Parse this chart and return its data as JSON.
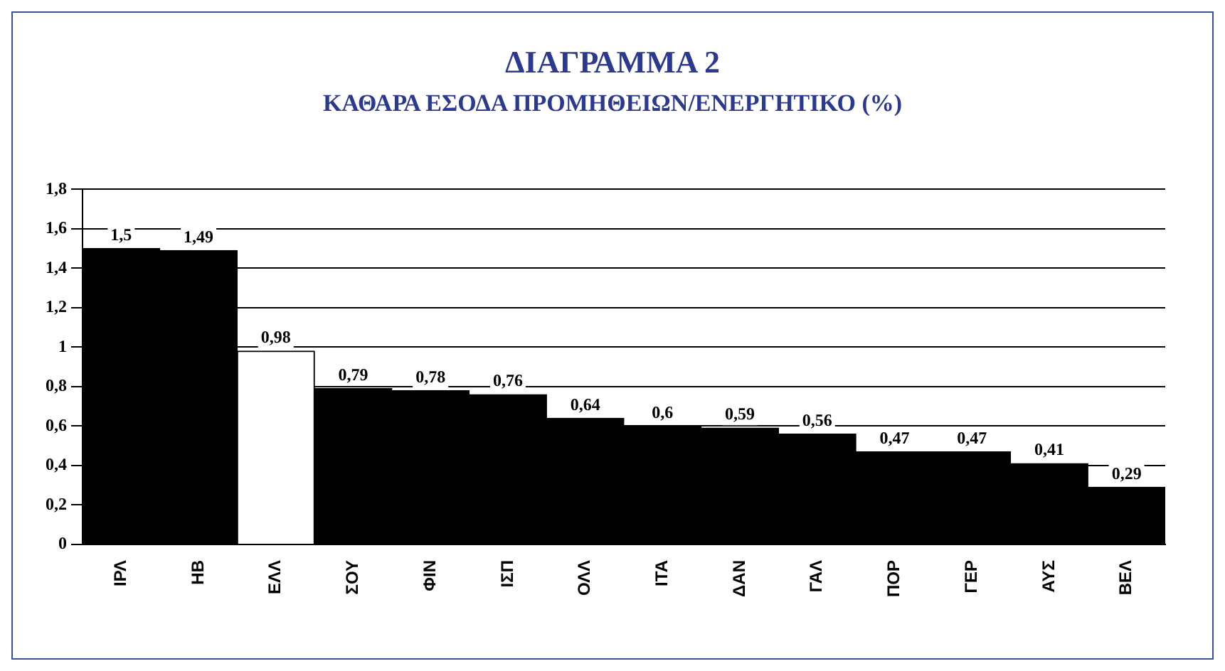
{
  "chart_data": {
    "type": "bar",
    "title": "ΔΙΑΓΡΑΜΜΑ 2",
    "subtitle": "ΚΑΘΑΡΑ ΕΣΟΔΑ ΠΡΟΜΗΘΕΙΩΝ/ΕΝΕΡΓΗΤΙΚΟ (%)",
    "categories": [
      "ΙΡΛ",
      "ΗΒ",
      "ΕΛΛ",
      "ΣΟΥ",
      "ΦΙΝ",
      "ΙΣΠ",
      "ΟΛΛ",
      "ΙΤΑ",
      "ΔΑΝ",
      "ΓΑΛ",
      "ΠΟΡ",
      "ΓΕΡ",
      "ΑΥΣ",
      "ΒΕΛ"
    ],
    "values": [
      1.5,
      1.49,
      0.98,
      0.79,
      0.78,
      0.76,
      0.64,
      0.6,
      0.59,
      0.56,
      0.47,
      0.47,
      0.41,
      0.29
    ],
    "value_labels": [
      "1,5",
      "1,49",
      "0,98",
      "0,79",
      "0,78",
      "0,76",
      "0,64",
      "0,6",
      "0,59",
      "0,56",
      "0,47",
      "0,47",
      "0,41",
      "0,29"
    ],
    "colors": [
      "#000000",
      "#000000",
      "#ffffff",
      "#000000",
      "#000000",
      "#000000",
      "#000000",
      "#000000",
      "#000000",
      "#000000",
      "#000000",
      "#000000",
      "#000000",
      "#000000"
    ],
    "ylim": [
      0,
      1.8
    ],
    "yticks": [
      {
        "value": 0,
        "label": "0"
      },
      {
        "value": 0.2,
        "label": "0,2"
      },
      {
        "value": 0.4,
        "label": "0,4"
      },
      {
        "value": 0.6,
        "label": "0,6"
      },
      {
        "value": 0.8,
        "label": "0,8"
      },
      {
        "value": 1,
        "label": "1"
      },
      {
        "value": 1.2,
        "label": "1,2"
      },
      {
        "value": 1.4,
        "label": "1,4"
      },
      {
        "value": 1.6,
        "label": "1,6"
      },
      {
        "value": 1.8,
        "label": "1,8"
      }
    ],
    "grid": "y",
    "legend": false
  }
}
